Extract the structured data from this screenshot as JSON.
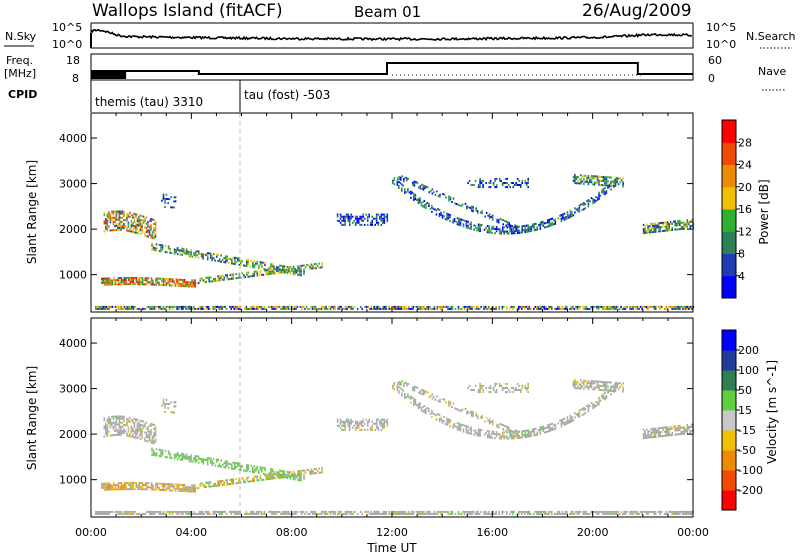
{
  "header": {
    "station": "Wallops Island (fitACF)",
    "beam": "Beam 01",
    "date": "26/Aug/2009"
  },
  "noise_panel": {
    "left_label": "N.Sky",
    "right_label": "N.Search",
    "left_ticks": [
      "10^5",
      "10^0"
    ],
    "right_ticks": [
      "10^5",
      "10^0"
    ]
  },
  "freq_panel": {
    "left_label_1": "Freq.",
    "left_label_2": "[MHz]",
    "right_label": "Nave",
    "left_ticks": [
      "18",
      "8"
    ],
    "right_ticks": [
      "60",
      "0"
    ]
  },
  "cpid_panel": {
    "label": "CPID",
    "mode_1": "themis (tau) 3310",
    "mode_2": "tau (fost) -503"
  },
  "colors": {
    "power": [
      "#0000ff",
      "#1e3cb4",
      "#2f7f56",
      "#30b030",
      "#f0c000",
      "#f08a00",
      "#f04a00",
      "#ff0000"
    ],
    "velocity": [
      "#0000ff",
      "#1f3c9c",
      "#2f7f56",
      "#5fcf3f",
      "#c8c8c8",
      "#f0c000",
      "#f08a00",
      "#f04a00",
      "#ff0000"
    ],
    "ground": "#a8a8a8"
  },
  "chart_data": [
    {
      "type": "heatmap",
      "title": "Power",
      "ylabel": "Slant Range [km]",
      "xlabel": "",
      "xlim": [
        0,
        24
      ],
      "ylim": [
        180,
        4550
      ],
      "yticks": [
        "1000",
        "2000",
        "3000",
        "4000"
      ],
      "colorbar_label": "Power [dB]",
      "colorbar_ticks": [
        "4",
        "8",
        "12",
        "16",
        "20",
        "24",
        "28"
      ]
    },
    {
      "type": "heatmap",
      "title": "Velocity",
      "ylabel": "Slant Range [km]",
      "xlabel": "Time UT",
      "xlim": [
        0,
        24
      ],
      "ylim": [
        180,
        4550
      ],
      "yticks": [
        "1000",
        "2000",
        "3000",
        "4000"
      ],
      "xticks": [
        "00:00",
        "04:00",
        "08:00",
        "12:00",
        "16:00",
        "20:00",
        "00:00"
      ],
      "colorbar_label": "Velocity [m s^-1]",
      "colorbar_ticks": [
        "200",
        "100",
        "50",
        "15",
        "-15",
        "-50",
        "-100",
        "-200"
      ]
    }
  ]
}
